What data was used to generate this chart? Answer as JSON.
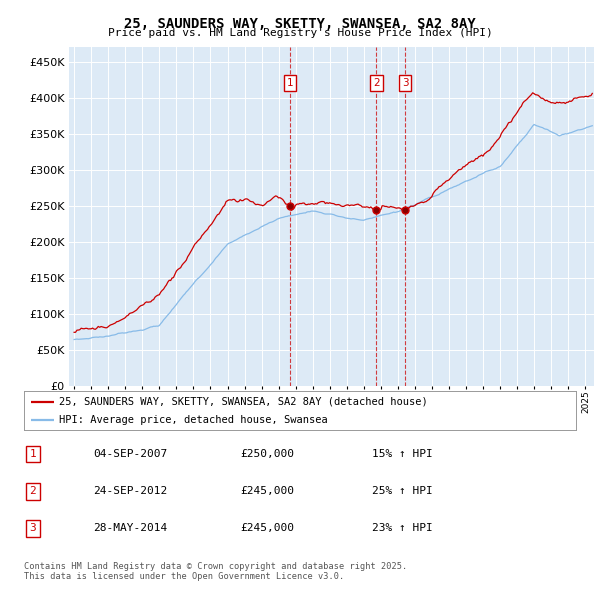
{
  "title": "25, SAUNDERS WAY, SKETTY, SWANSEA, SA2 8AY",
  "subtitle": "Price paid vs. HM Land Registry's House Price Index (HPI)",
  "ylabel_vals": [
    0,
    50000,
    100000,
    150000,
    200000,
    250000,
    300000,
    350000,
    400000,
    450000
  ],
  "ylim": [
    0,
    470000
  ],
  "xlim_start": 1994.7,
  "xlim_end": 2025.5,
  "bg_color": "#ddeaf6",
  "grid_color": "#ffffff",
  "red_color": "#cc0000",
  "blue_color": "#88bbe8",
  "sale_dates": [
    2007.674,
    2012.731,
    2014.411
  ],
  "sale_prices": [
    250000,
    245000,
    245000
  ],
  "sale_labels": [
    "1",
    "2",
    "3"
  ],
  "legend_line1": "25, SAUNDERS WAY, SKETTY, SWANSEA, SA2 8AY (detached house)",
  "legend_line2": "HPI: Average price, detached house, Swansea",
  "table_data": [
    [
      "1",
      "04-SEP-2007",
      "£250,000",
      "15% ↑ HPI"
    ],
    [
      "2",
      "24-SEP-2012",
      "£245,000",
      "25% ↑ HPI"
    ],
    [
      "3",
      "28-MAY-2014",
      "£245,000",
      "23% ↑ HPI"
    ]
  ],
  "footnote": "Contains HM Land Registry data © Crown copyright and database right 2025.\nThis data is licensed under the Open Government Licence v3.0."
}
